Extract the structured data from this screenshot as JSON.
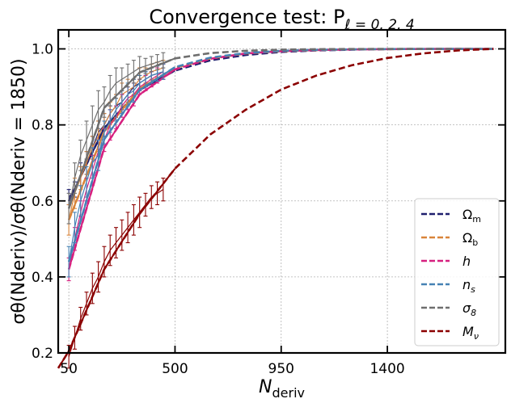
{
  "chart_data": {
    "type": "line",
    "title": "Convergence test: P",
    "title_subscript": "ℓ = 0, 2, 4",
    "xlabel": "N",
    "xlabel_subscript": "deriv",
    "ylabel": "σθ(Nderiv)/σθ(Nderiv = 1850)",
    "xlim": [
      5,
      1900
    ],
    "ylim": [
      0.2,
      1.05
    ],
    "xticks": [
      50,
      500,
      950,
      1400
    ],
    "yticks": [
      0.2,
      0.4,
      0.6,
      0.8,
      1.0
    ],
    "xtick_labels": [
      "50",
      "500",
      "950",
      "1400"
    ],
    "ytick_labels": [
      "0.2",
      "0.4",
      "0.6",
      "0.8",
      "1.0"
    ],
    "grid": true,
    "legend_position": "lower-right",
    "measurement_x": [
      50,
      75,
      100,
      125,
      150,
      175,
      200,
      225,
      250,
      275,
      300,
      325,
      350,
      375,
      400,
      425,
      450
    ],
    "series": [
      {
        "name": "Ωm",
        "color": "#1f1f6e",
        "fit_x": [
          50,
          200,
          350,
          500,
          650,
          800,
          950,
          1100,
          1250,
          1400,
          1550,
          1700,
          1850
        ],
        "fit_y": [
          0.6,
          0.792,
          0.892,
          0.943,
          0.97,
          0.984,
          0.992,
          0.996,
          0.998,
          0.9993,
          0.9998,
          1.0,
          1.0
        ],
        "meas_y": [
          0.61,
          0.63,
          0.67,
          0.7,
          0.74,
          0.78,
          0.8,
          0.83,
          0.85,
          0.86,
          0.88,
          0.9,
          0.91,
          0.92,
          0.93,
          0.935,
          0.94
        ],
        "err": [
          0.02,
          0.02,
          0.03,
          0.03,
          0.03,
          0.03,
          0.03,
          0.02,
          0.03,
          0.02,
          0.02,
          0.02,
          0.02,
          0.02,
          0.02,
          0.02,
          0.02
        ]
      },
      {
        "name": "Ωb",
        "color": "#d9843a",
        "fit_x": [
          50,
          200,
          350,
          500,
          650,
          800,
          950,
          1100,
          1250,
          1400,
          1550,
          1700,
          1850
        ],
        "fit_y": [
          0.55,
          0.782,
          0.896,
          0.95,
          0.975,
          0.988,
          0.994,
          0.997,
          0.9986,
          0.9994,
          0.9998,
          1.0,
          1.0
        ],
        "meas_y": [
          0.55,
          0.62,
          0.66,
          0.7,
          0.74,
          0.77,
          0.8,
          0.83,
          0.85,
          0.88,
          0.89,
          0.9,
          0.92,
          0.93,
          0.94,
          0.945,
          0.95
        ],
        "err": [
          0.04,
          0.04,
          0.03,
          0.03,
          0.03,
          0.04,
          0.03,
          0.03,
          0.03,
          0.03,
          0.03,
          0.02,
          0.03,
          0.02,
          0.02,
          0.02,
          0.02
        ]
      },
      {
        "name": "h",
        "color": "#d6207f",
        "fit_x": [
          50,
          200,
          350,
          500,
          650,
          800,
          950,
          1100,
          1250,
          1400,
          1550,
          1700,
          1850
        ],
        "fit_y": [
          0.42,
          0.74,
          0.88,
          0.946,
          0.974,
          0.988,
          0.994,
          0.997,
          0.9986,
          0.9994,
          0.9998,
          1.0,
          1.0
        ],
        "meas_y": [
          0.42,
          0.5,
          0.57,
          0.63,
          0.68,
          0.73,
          0.76,
          0.8,
          0.82,
          0.85,
          0.87,
          0.88,
          0.9,
          0.91,
          0.92,
          0.93,
          0.94
        ],
        "err": [
          0.03,
          0.03,
          0.03,
          0.03,
          0.04,
          0.03,
          0.03,
          0.04,
          0.03,
          0.03,
          0.03,
          0.03,
          0.02,
          0.02,
          0.02,
          0.02,
          0.02
        ]
      },
      {
        "name": "ns",
        "color": "#4682b4",
        "fit_x": [
          50,
          200,
          350,
          500,
          650,
          800,
          950,
          1100,
          1250,
          1400,
          1550,
          1700,
          1850
        ],
        "fit_y": [
          0.44,
          0.762,
          0.892,
          0.952,
          0.977,
          0.989,
          0.995,
          0.9975,
          0.9988,
          0.9995,
          0.9998,
          1.0,
          1.0
        ],
        "meas_y": [
          0.44,
          0.53,
          0.6,
          0.65,
          0.7,
          0.72,
          0.78,
          0.81,
          0.84,
          0.86,
          0.88,
          0.89,
          0.91,
          0.92,
          0.93,
          0.935,
          0.94
        ],
        "err": [
          0.04,
          0.04,
          0.04,
          0.04,
          0.04,
          0.04,
          0.03,
          0.03,
          0.03,
          0.03,
          0.03,
          0.03,
          0.02,
          0.02,
          0.02,
          0.02,
          0.02
        ]
      },
      {
        "name": "σ8",
        "color": "#6e6e6e",
        "fit_x": [
          50,
          200,
          350,
          500,
          650,
          800,
          950,
          1100,
          1250,
          1400,
          1550,
          1700,
          1850
        ],
        "fit_y": [
          0.58,
          0.845,
          0.938,
          0.975,
          0.989,
          0.995,
          0.998,
          0.9992,
          0.9997,
          0.9999,
          1.0,
          1.0,
          1.0
        ],
        "meas_y": [
          0.58,
          0.66,
          0.72,
          0.76,
          0.8,
          0.84,
          0.86,
          0.89,
          0.91,
          0.92,
          0.93,
          0.94,
          0.95,
          0.955,
          0.96,
          0.965,
          0.97
        ],
        "err": [
          0.04,
          0.04,
          0.04,
          0.05,
          0.05,
          0.05,
          0.04,
          0.04,
          0.04,
          0.03,
          0.03,
          0.03,
          0.03,
          0.02,
          0.02,
          0.02,
          0.02
        ]
      },
      {
        "name": "Mν",
        "color": "#8b0000",
        "fit_x": [
          5,
          50,
          200,
          350,
          500,
          650,
          800,
          950,
          1100,
          1250,
          1400,
          1550,
          1700,
          1850
        ],
        "fit_y": [
          0.16,
          0.205,
          0.42,
          0.566,
          0.685,
          0.775,
          0.84,
          0.893,
          0.93,
          0.957,
          0.976,
          0.988,
          0.996,
          1.0
        ],
        "meas_y": [
          0.19,
          0.24,
          0.29,
          0.33,
          0.37,
          0.4,
          0.44,
          0.47,
          0.49,
          0.51,
          0.53,
          0.55,
          0.57,
          0.59,
          0.61,
          0.62,
          0.63
        ],
        "err": [
          0.03,
          0.03,
          0.03,
          0.03,
          0.04,
          0.04,
          0.04,
          0.04,
          0.04,
          0.04,
          0.04,
          0.04,
          0.04,
          0.03,
          0.03,
          0.03,
          0.03
        ]
      }
    ],
    "legend": [
      {
        "label": "Ω",
        "sub": "m",
        "italic": false
      },
      {
        "label": "Ω",
        "sub": "b",
        "italic": false
      },
      {
        "label": "h",
        "sub": "",
        "italic": true
      },
      {
        "label": "n",
        "sub": "s",
        "italic": true
      },
      {
        "label": "σ",
        "sub": "8",
        "italic": true
      },
      {
        "label": "M",
        "sub": "ν",
        "italic": true
      }
    ]
  }
}
